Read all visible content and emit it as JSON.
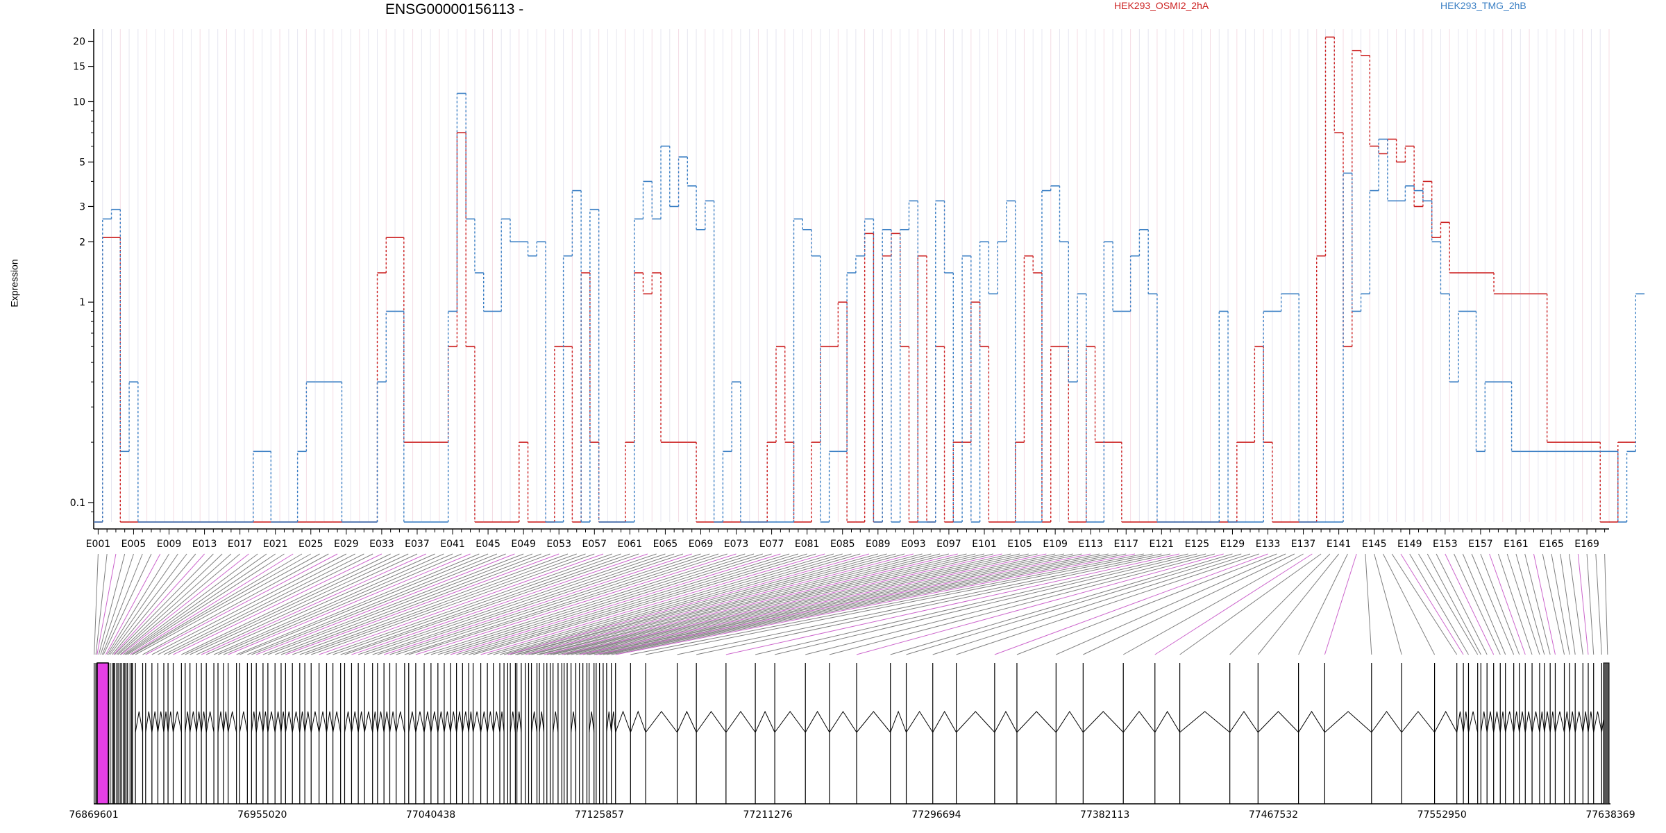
{
  "chart_data": {
    "type": "line",
    "title": "ENSG00000156113 -",
    "ylabel": "Expression",
    "y_scale": "log",
    "ylim": [
      0.08,
      23
    ],
    "y_ticks": [
      0.1,
      1,
      2,
      3,
      5,
      10,
      15,
      20
    ],
    "n_exons": 171,
    "x_tick_labels": [
      "E001",
      "E005",
      "E009",
      "E013",
      "E017",
      "E021",
      "E025",
      "E029",
      "E033",
      "E037",
      "E041",
      "E045",
      "E049",
      "E053",
      "E057",
      "E061",
      "E065",
      "E069",
      "E073",
      "E077",
      "E081",
      "E085",
      "E089",
      "E093",
      "E097",
      "E101",
      "E105",
      "E109",
      "E113",
      "E117",
      "E121",
      "E125",
      "E129",
      "E133",
      "E137",
      "E141",
      "E145",
      "E149",
      "E153",
      "E157",
      "E161",
      "E165",
      "E169"
    ],
    "series": [
      {
        "name": "HEK293_OSMI2_2hA",
        "color": "#cc2020",
        "values": [
          0.08,
          2.1,
          2.1,
          0.08,
          0.08,
          0.08,
          0.08,
          0.08,
          0.08,
          0.08,
          0.08,
          0.08,
          0.08,
          0.08,
          0.08,
          0.08,
          0.08,
          0.08,
          0.08,
          0.08,
          0.08,
          0.08,
          0.08,
          0.08,
          0.08,
          0.08,
          0.08,
          0.08,
          0.08,
          0.08,
          0.08,
          0.08,
          1.4,
          2.1,
          2.1,
          0.2,
          0.2,
          0.2,
          0.2,
          0.2,
          0.6,
          7.0,
          0.6,
          0.08,
          0.08,
          0.08,
          0.08,
          0.08,
          0.2,
          0.08,
          0.08,
          0.08,
          0.6,
          0.6,
          0.08,
          1.4,
          0.2,
          0.08,
          0.08,
          0.08,
          0.2,
          1.4,
          1.1,
          1.4,
          0.2,
          0.2,
          0.2,
          0.2,
          0.08,
          0.08,
          0.08,
          0.08,
          0.08,
          0.08,
          0.08,
          0.08,
          0.2,
          0.6,
          0.2,
          0.08,
          0.08,
          0.2,
          0.6,
          0.6,
          1.0,
          0.08,
          0.08,
          2.2,
          0.08,
          1.7,
          2.2,
          0.6,
          0.08,
          1.7,
          0.08,
          0.6,
          0.08,
          0.2,
          0.2,
          1.0,
          0.6,
          0.08,
          0.08,
          0.08,
          0.2,
          1.7,
          1.4,
          0.08,
          0.6,
          0.6,
          0.08,
          0.08,
          0.6,
          0.2,
          0.2,
          0.2,
          0.08,
          0.08,
          0.08,
          0.08,
          0.08,
          0.08,
          0.08,
          0.08,
          0.08,
          0.08,
          0.08,
          0.08,
          0.08,
          0.2,
          0.2,
          0.6,
          0.2,
          0.08,
          0.08,
          0.08,
          0.08,
          0.08,
          1.7,
          21,
          7.0,
          0.6,
          18,
          17,
          6.0,
          5.5,
          6.5,
          5.0,
          6.0,
          3.0,
          4.0,
          2.1,
          2.5,
          1.4,
          1.4,
          1.4,
          1.4,
          1.4,
          1.1,
          1.1,
          1.1,
          1.1,
          1.1,
          1.1,
          0.2,
          0.2,
          0.2,
          0.2,
          0.2,
          0.2,
          0.08,
          0.08,
          0.2,
          0.2
        ],
        "note_style": "dashed-vertical"
      },
      {
        "name": "HEK293_TMG_2hB",
        "color": "#3a7fc4",
        "values": [
          0.08,
          2.6,
          2.9,
          0.18,
          0.4,
          0.08,
          0.08,
          0.08,
          0.08,
          0.08,
          0.08,
          0.08,
          0.08,
          0.08,
          0.08,
          0.08,
          0.08,
          0.08,
          0.18,
          0.18,
          0.08,
          0.08,
          0.08,
          0.18,
          0.4,
          0.4,
          0.4,
          0.4,
          0.08,
          0.08,
          0.08,
          0.08,
          0.4,
          0.9,
          0.9,
          0.08,
          0.08,
          0.08,
          0.08,
          0.08,
          0.9,
          11,
          2.6,
          1.4,
          0.9,
          0.9,
          2.6,
          2.0,
          2.0,
          1.7,
          2.0,
          0.08,
          0.08,
          1.7,
          3.6,
          0.08,
          2.9,
          0.08,
          0.08,
          0.08,
          0.08,
          2.6,
          4.0,
          2.6,
          6.0,
          3.0,
          5.3,
          3.8,
          2.3,
          3.2,
          0.08,
          0.18,
          0.4,
          0.08,
          0.08,
          0.08,
          0.08,
          0.08,
          0.08,
          2.6,
          2.3,
          1.7,
          0.08,
          0.18,
          0.18,
          1.4,
          1.7,
          2.6,
          0.08,
          2.3,
          0.08,
          2.3,
          3.2,
          0.08,
          0.08,
          3.2,
          1.4,
          0.08,
          1.7,
          0.08,
          2.0,
          1.1,
          2.0,
          3.2,
          0.08,
          0.08,
          0.08,
          3.6,
          3.8,
          2.0,
          0.4,
          1.1,
          0.08,
          0.08,
          2.0,
          0.9,
          0.9,
          1.7,
          2.3,
          1.1,
          0.08,
          0.08,
          0.08,
          0.08,
          0.08,
          0.08,
          0.08,
          0.9,
          0.08,
          0.08,
          0.08,
          0.08,
          0.9,
          0.9,
          1.1,
          1.1,
          0.08,
          0.08,
          0.08,
          0.08,
          0.08,
          4.4,
          0.9,
          1.1,
          3.6,
          6.5,
          3.2,
          3.2,
          3.8,
          3.6,
          3.2,
          2.0,
          1.1,
          0.4,
          0.9,
          0.9,
          0.18,
          0.4,
          0.4,
          0.4,
          0.18,
          0.18,
          0.18,
          0.18,
          0.18,
          0.18,
          0.18,
          0.18,
          0.18,
          0.18,
          0.18,
          0.18,
          0.08,
          0.18,
          1.1
        ],
        "note_style": "dashed-vertical"
      }
    ],
    "genomic_axis": {
      "tick_labels": [
        "76869601",
        "76955020",
        "77040438",
        "77125857",
        "77211276",
        "77296694",
        "77382113",
        "77467532",
        "77552950",
        "77638369"
      ]
    },
    "gene_model": {
      "highlight_color": "#e640e6",
      "connector_highlight_color": "#cc66cc"
    }
  }
}
